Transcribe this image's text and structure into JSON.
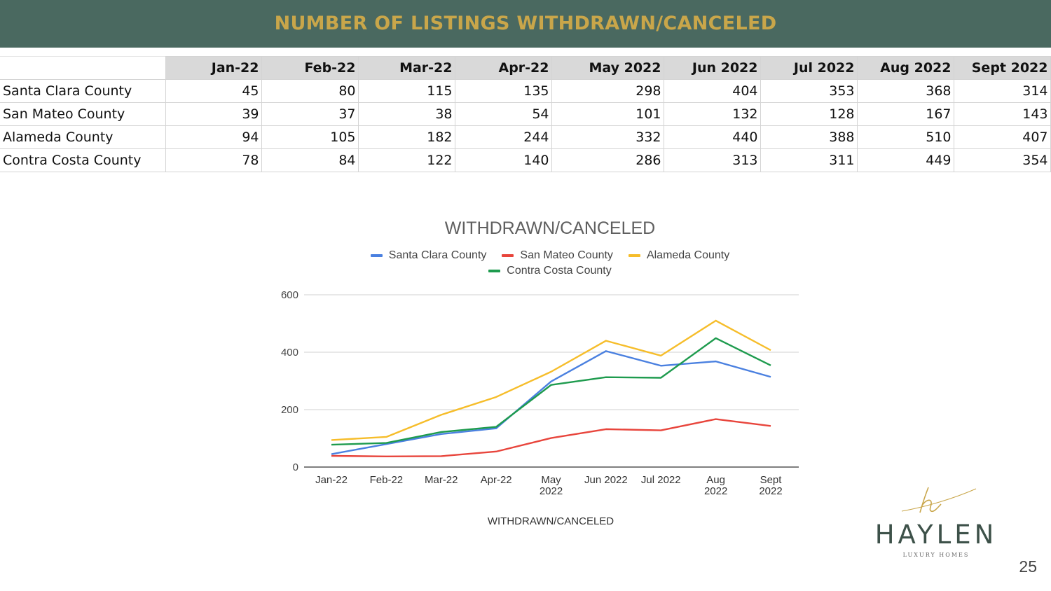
{
  "header": {
    "title": "NUMBER OF LISTINGS WITHDRAWN/CANCELED"
  },
  "table": {
    "columns": [
      "Jan-22",
      "Feb-22",
      "Mar-22",
      "Apr-22",
      "May 2022",
      "Jun 2022",
      "Jul 2022",
      "Aug 2022",
      "Sept 2022"
    ],
    "rows": [
      {
        "label": "Santa Clara County",
        "values": [
          "45",
          "80",
          "115",
          "135",
          "298",
          "404",
          "353",
          "368",
          "314"
        ]
      },
      {
        "label": "San Mateo County",
        "values": [
          "39",
          "37",
          "38",
          "54",
          "101",
          "132",
          "128",
          "167",
          "143"
        ]
      },
      {
        "label": "Alameda County",
        "values": [
          "94",
          "105",
          "182",
          "244",
          "332",
          "440",
          "388",
          "510",
          "407"
        ]
      },
      {
        "label": "Contra Costa County",
        "values": [
          "78",
          "84",
          "122",
          "140",
          "286",
          "313",
          "311",
          "449",
          "354"
        ]
      }
    ]
  },
  "chart_data": {
    "type": "line",
    "title": "WITHDRAWN/CANCELED",
    "xlabel": "WITHDRAWN/CANCELED",
    "ylabel": "",
    "categories": [
      "Jan-22",
      "Feb-22",
      "Mar-22",
      "Apr-22",
      "May 2022",
      "Jun 2022",
      "Jul 2022",
      "Aug 2022",
      "Sept 2022"
    ],
    "ylim": [
      0,
      600
    ],
    "yticks": [
      0,
      200,
      400,
      600
    ],
    "grid": true,
    "legend_position": "top",
    "series": [
      {
        "name": "Santa Clara County",
        "color": "#4a80e0",
        "values": [
          45,
          80,
          115,
          135,
          298,
          404,
          353,
          368,
          314
        ]
      },
      {
        "name": "San Mateo County",
        "color": "#e8453c",
        "values": [
          39,
          37,
          38,
          54,
          101,
          132,
          128,
          167,
          143
        ]
      },
      {
        "name": "Alameda County",
        "color": "#f6bd2a",
        "values": [
          94,
          105,
          182,
          244,
          332,
          440,
          388,
          510,
          407
        ]
      },
      {
        "name": "Contra Costa County",
        "color": "#1e9b4e",
        "values": [
          78,
          84,
          122,
          140,
          286,
          313,
          311,
          449,
          354
        ]
      }
    ]
  },
  "logo": {
    "word": "HAYLEN",
    "tagline": "LUXURY HOMES",
    "accent": "#c9a64a"
  },
  "page_number": "25"
}
